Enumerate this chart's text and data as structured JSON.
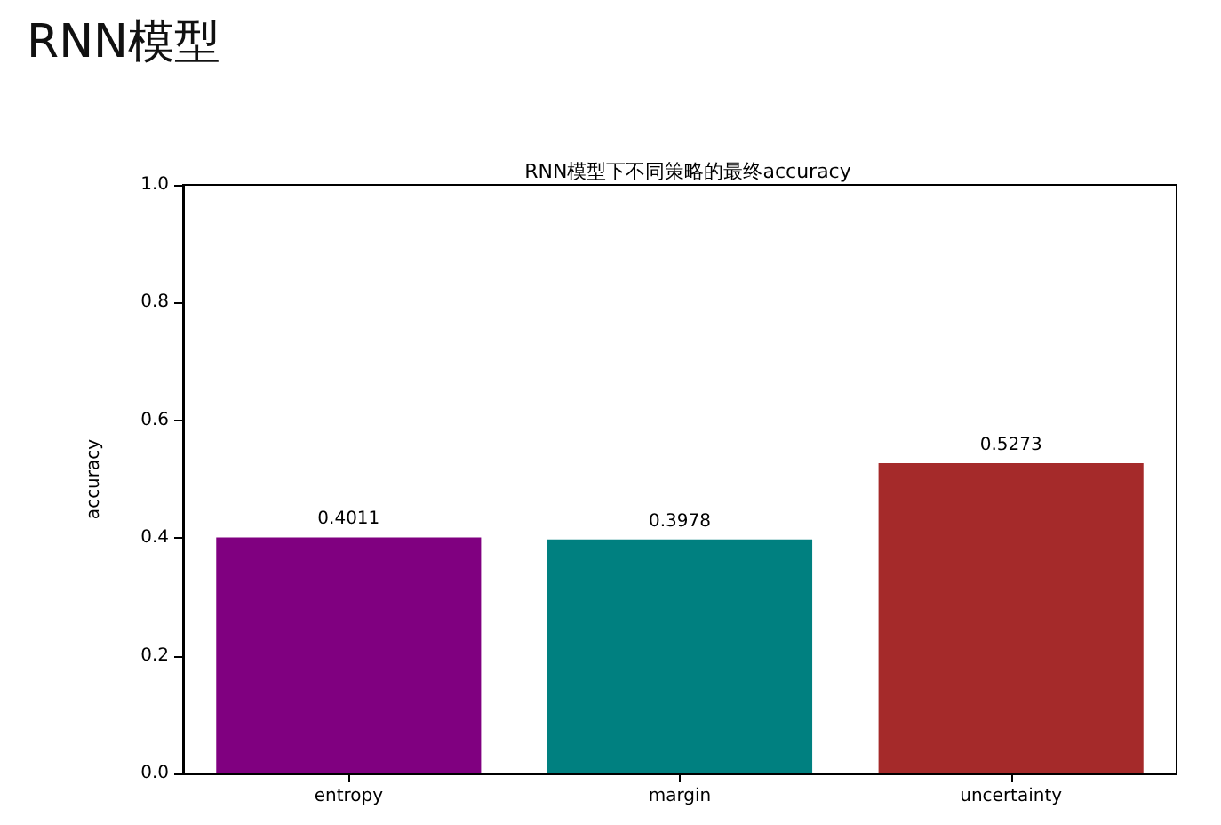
{
  "chart_data": {
    "type": "bar",
    "title": "RNN模型",
    "subtitle": "RNN模型下不同策略的最终accuracy",
    "ylabel": "accuracy",
    "categories": [
      "entropy",
      "margin",
      "uncertainty"
    ],
    "values": [
      0.4011,
      0.3978,
      0.5273
    ],
    "colors": [
      "#800080",
      "#008080",
      "#a52a2a"
    ],
    "ylim": [
      0,
      1
    ],
    "yticks": [
      {
        "value": 0,
        "label": "0.0"
      },
      {
        "value": 0.2,
        "label": "0.2"
      },
      {
        "value": 0.4,
        "label": "0.4"
      },
      {
        "value": 0.6,
        "label": "0.6"
      },
      {
        "value": 0.8,
        "label": "0.8"
      },
      {
        "value": 1,
        "label": "1.0"
      }
    ],
    "data_labels": true,
    "grid": false
  }
}
